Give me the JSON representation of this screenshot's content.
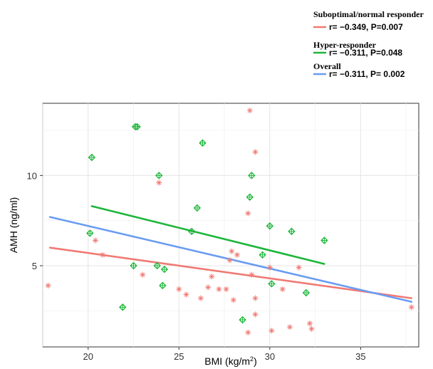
{
  "chart_data": {
    "type": "scatter",
    "xlabel": "BMI (kg/m²)",
    "ylabel": "AMH (ng/ml)",
    "xlim": [
      17.5,
      38.2
    ],
    "ylim": [
      0.5,
      14.0
    ],
    "x_ticks": [
      20,
      25,
      30,
      35
    ],
    "y_ticks": [
      5,
      10
    ],
    "grid": true,
    "legend_position": "top-right",
    "series": [
      {
        "key": "suboptimal",
        "name": "Suboptimal/normal responder",
        "stat_label": "r= −0.349, P=0.007",
        "color": "#F07A74",
        "marker": "asterisk",
        "points": [
          [
            17.8,
            3.9
          ],
          [
            20.4,
            6.4
          ],
          [
            20.8,
            5.6
          ],
          [
            23.0,
            4.5
          ],
          [
            23.9,
            9.6
          ],
          [
            25.0,
            3.7
          ],
          [
            25.4,
            3.4
          ],
          [
            26.2,
            3.2
          ],
          [
            26.6,
            3.8
          ],
          [
            26.8,
            4.4
          ],
          [
            27.2,
            3.7
          ],
          [
            27.6,
            3.7
          ],
          [
            27.8,
            5.3
          ],
          [
            27.9,
            5.8
          ],
          [
            28.0,
            3.1
          ],
          [
            28.2,
            5.6
          ],
          [
            28.8,
            7.9
          ],
          [
            28.9,
            13.6
          ],
          [
            28.8,
            1.3
          ],
          [
            29.0,
            4.5
          ],
          [
            29.2,
            11.3
          ],
          [
            29.2,
            3.2
          ],
          [
            29.2,
            2.3
          ],
          [
            30.0,
            4.9
          ],
          [
            30.1,
            1.4
          ],
          [
            30.7,
            3.7
          ],
          [
            31.1,
            1.6
          ],
          [
            31.6,
            4.9
          ],
          [
            32.2,
            1.8
          ],
          [
            32.3,
            1.5
          ],
          [
            37.8,
            2.7
          ]
        ],
        "fit": {
          "x": [
            17.9,
            37.8
          ],
          "y": [
            6.0,
            3.2
          ]
        }
      },
      {
        "key": "hyper",
        "name": "Hyper-responder",
        "stat_label": "r= −0.311, P=0.048",
        "color": "#1DB63A",
        "marker": "circled-plus-diamond",
        "points": [
          [
            20.1,
            6.8
          ],
          [
            20.2,
            11.0
          ],
          [
            21.9,
            2.7
          ],
          [
            22.5,
            5.0
          ],
          [
            22.6,
            12.7
          ],
          [
            22.7,
            12.7
          ],
          [
            23.8,
            5.0
          ],
          [
            23.9,
            10.0
          ],
          [
            24.1,
            3.9
          ],
          [
            24.2,
            4.8
          ],
          [
            25.7,
            6.9
          ],
          [
            26.0,
            8.2
          ],
          [
            26.3,
            11.8
          ],
          [
            28.5,
            2.0
          ],
          [
            28.9,
            8.8
          ],
          [
            29.0,
            10.0
          ],
          [
            29.6,
            5.6
          ],
          [
            30.0,
            7.2
          ],
          [
            30.1,
            4.0
          ],
          [
            31.2,
            6.9
          ],
          [
            32.0,
            3.5
          ],
          [
            33.0,
            6.4
          ]
        ],
        "fit": {
          "x": [
            20.2,
            33.0
          ],
          "y": [
            8.3,
            5.1
          ]
        }
      },
      {
        "key": "overall",
        "name": "Overall",
        "stat_label": "r= −0.311, P= 0.002",
        "color": "#6A9CF2",
        "marker": "none",
        "points": [],
        "fit": {
          "x": [
            17.9,
            37.8
          ],
          "y": [
            7.7,
            3.0
          ]
        }
      }
    ]
  }
}
